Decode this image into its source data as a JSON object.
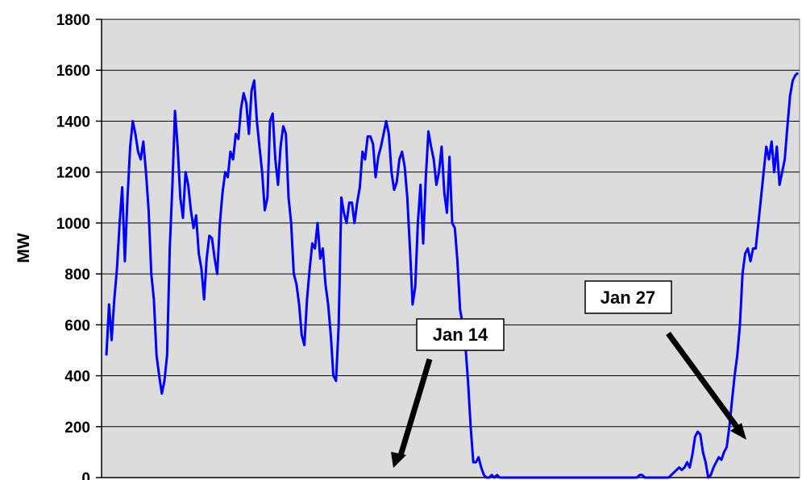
{
  "chart_data": {
    "type": "line",
    "ylabel": "MW",
    "xlabel": "",
    "title": "",
    "ylim": [
      0,
      1800
    ],
    "yticks": [
      "0",
      "200",
      "400",
      "600",
      "800",
      "1000",
      "1200",
      "1400",
      "1600",
      "1800"
    ],
    "grid": true,
    "colors": {
      "plot_bg": "#dcdcdc",
      "series": "#0000ff",
      "grid": "#000000",
      "arrow": "#000000"
    },
    "series": [
      {
        "values": [
          480,
          680,
          540,
          700,
          820,
          1000,
          1140,
          850,
          1100,
          1300,
          1400,
          1350,
          1280,
          1250,
          1320,
          1200,
          1050,
          800,
          700,
          480,
          400,
          330,
          380,
          480,
          900,
          1150,
          1440,
          1300,
          1100,
          1020,
          1200,
          1150,
          1050,
          980,
          1030,
          880,
          820,
          700,
          860,
          950,
          940,
          860,
          800,
          1000,
          1120,
          1200,
          1180,
          1280,
          1250,
          1350,
          1330,
          1450,
          1510,
          1470,
          1350,
          1520,
          1560,
          1400,
          1300,
          1200,
          1050,
          1100,
          1400,
          1430,
          1250,
          1150,
          1300,
          1380,
          1350,
          1100,
          1000,
          800,
          760,
          680,
          560,
          520,
          700,
          820,
          920,
          900,
          1000,
          860,
          900,
          760,
          680,
          560,
          400,
          380,
          600,
          1100,
          1040,
          1000,
          1080,
          1080,
          1000,
          1080,
          1140,
          1280,
          1250,
          1340,
          1340,
          1310,
          1180,
          1260,
          1300,
          1350,
          1400,
          1350,
          1200,
          1130,
          1160,
          1250,
          1280,
          1220,
          1100,
          900,
          680,
          750,
          1000,
          1150,
          920,
          1180,
          1360,
          1300,
          1250,
          1150,
          1200,
          1300,
          1120,
          1040,
          1260,
          1000,
          980,
          850,
          660,
          600,
          520,
          380,
          200,
          60,
          60,
          80,
          40,
          10,
          0,
          0,
          10,
          0,
          10,
          0,
          0,
          0,
          0,
          0,
          0,
          0,
          0,
          0,
          0,
          0,
          0,
          0,
          0,
          0,
          0,
          0,
          0,
          0,
          0,
          0,
          0,
          0,
          0,
          0,
          0,
          0,
          0,
          0,
          0,
          0,
          0,
          0,
          0,
          0,
          0,
          0,
          0,
          0,
          0,
          0,
          0,
          0,
          0,
          0,
          0,
          0,
          0,
          0,
          0,
          0,
          0,
          0,
          10,
          10,
          0,
          0,
          0,
          0,
          0,
          0,
          0,
          0,
          0,
          0,
          10,
          20,
          30,
          40,
          30,
          40,
          60,
          40,
          90,
          160,
          180,
          170,
          100,
          60,
          0,
          10,
          40,
          60,
          80,
          70,
          100,
          120,
          200,
          300,
          400,
          480,
          600,
          800,
          880,
          900,
          850,
          900,
          900,
          1000,
          1100,
          1200,
          1300,
          1250,
          1320,
          1200,
          1300,
          1150,
          1200,
          1250,
          1380,
          1500,
          1560,
          1580,
          1590
        ]
      }
    ],
    "annotations": [
      {
        "label": "Jan 14"
      },
      {
        "label": "Jan 27"
      }
    ]
  }
}
